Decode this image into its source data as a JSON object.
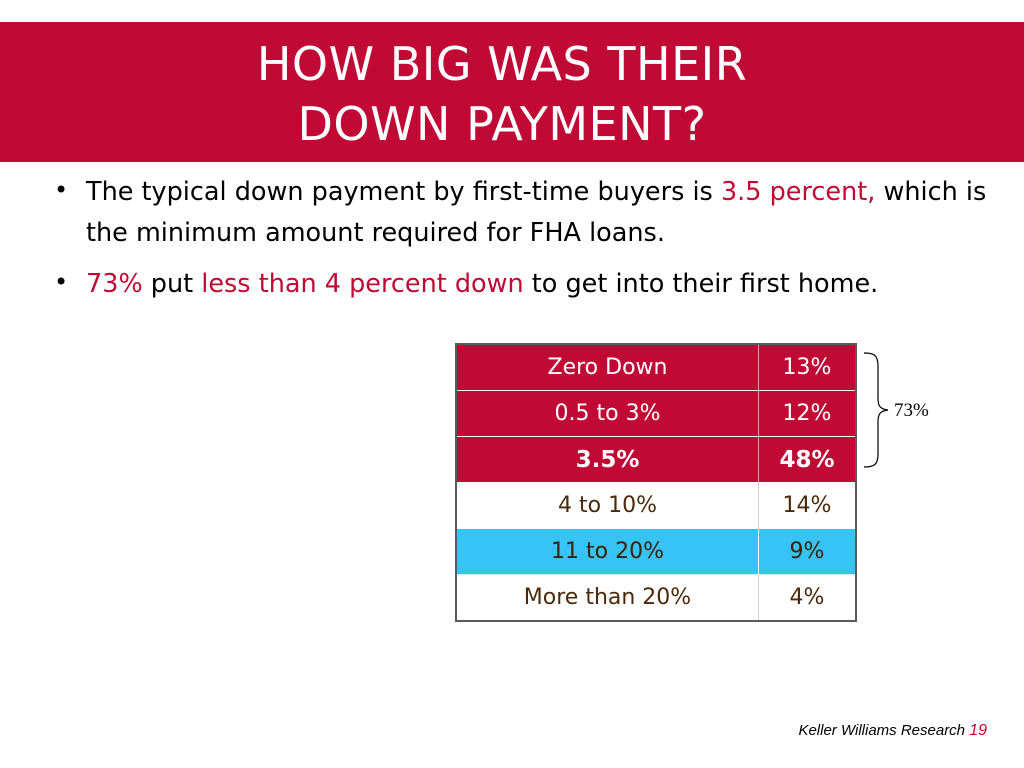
{
  "title": {
    "line1": "HOW BIG WAS THEIR",
    "line2": "DOWN PAYMENT?"
  },
  "bullets": [
    {
      "parts": [
        {
          "text": "The typical down payment by first-time buyers is ",
          "hl": false
        },
        {
          "text": "3.5 percent,",
          "hl": true
        },
        {
          "text": " which is the minimum amount required for FHA loans.",
          "hl": false
        }
      ]
    },
    {
      "parts": [
        {
          "text": "73%",
          "hl": true
        },
        {
          "text": " put ",
          "hl": false
        },
        {
          "text": "less than 4 percent down",
          "hl": true
        },
        {
          "text": " to get into their first home.",
          "hl": false
        }
      ]
    }
  ],
  "table": {
    "rows": [
      {
        "range": "Zero Down",
        "pct": "13%",
        "style": "red"
      },
      {
        "range": "0.5 to 3%",
        "pct": "12%",
        "style": "red"
      },
      {
        "range": "3.5%",
        "pct": "48%",
        "style": "red bold"
      },
      {
        "range": "4 to 10%",
        "pct": "14%",
        "style": "white"
      },
      {
        "range": "11 to 20%",
        "pct": "9%",
        "style": "blue"
      },
      {
        "range": "More than 20%",
        "pct": "4%",
        "style": "white"
      }
    ]
  },
  "brace_label": "73%",
  "footer": {
    "source": "Keller Williams Research",
    "page": "19"
  },
  "colors": {
    "accent": "#c00a35",
    "highlight_row": "#36c4f5"
  }
}
